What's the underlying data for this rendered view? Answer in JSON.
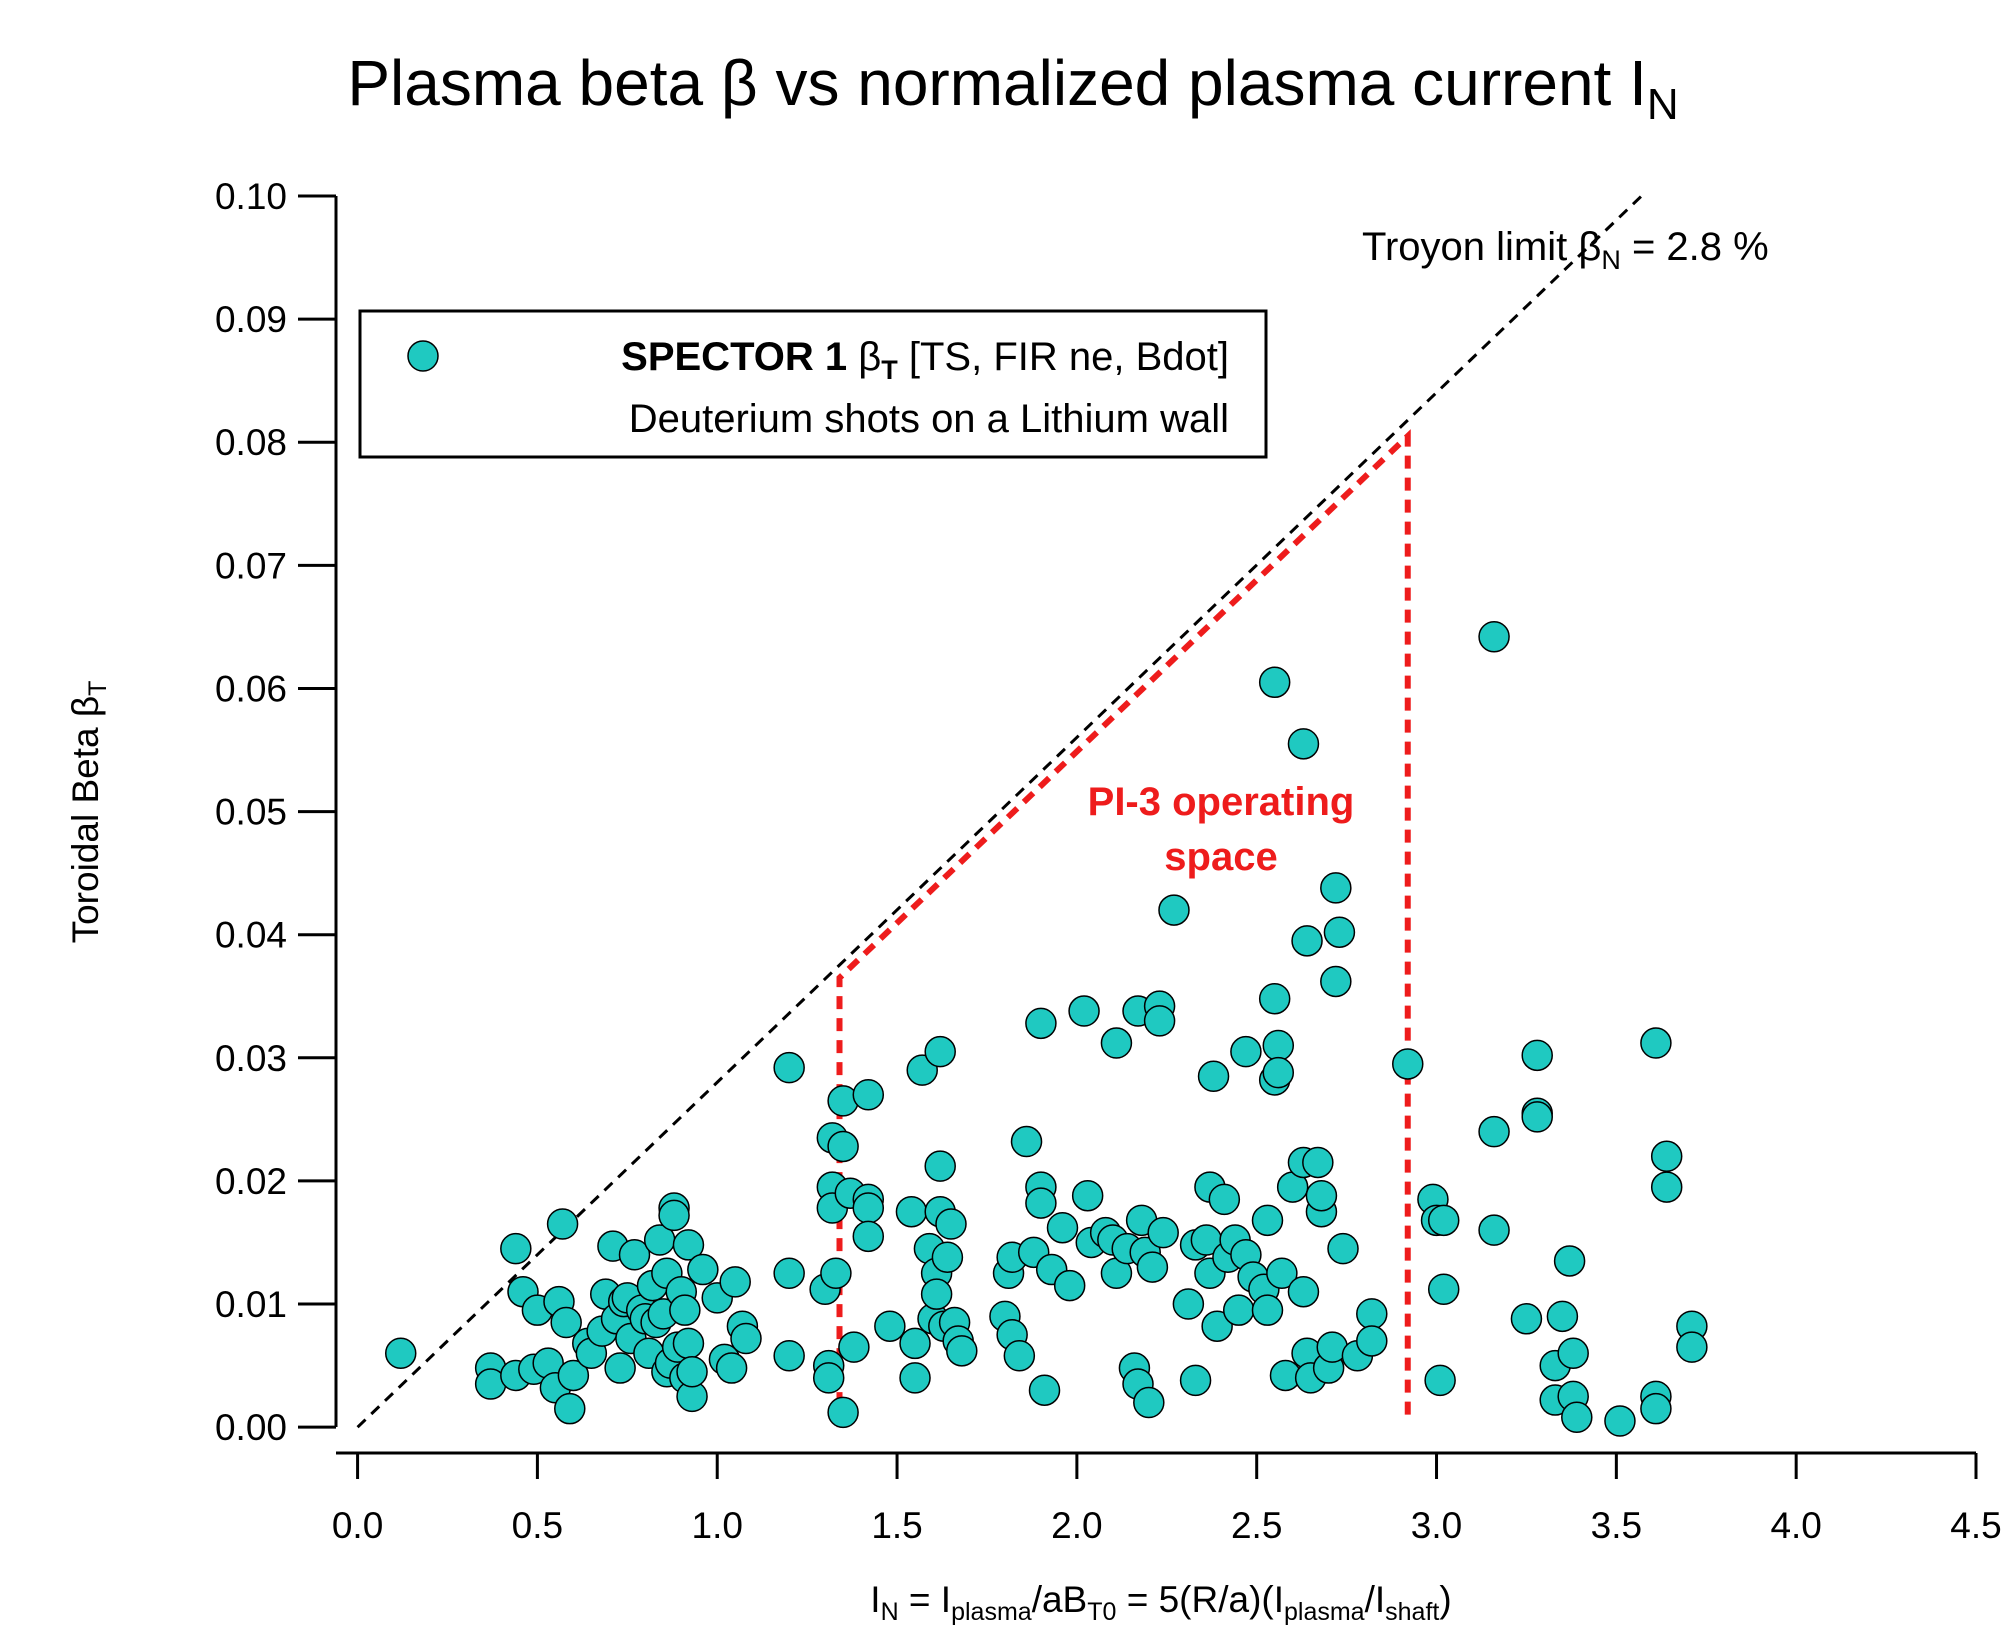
{
  "chart_data": {
    "type": "scatter",
    "title": [
      {
        "text": "Plasma beta β vs normalized plasma current  I"
      },
      {
        "text": "N",
        "sub": true
      }
    ],
    "x_label": [
      {
        "text": "I"
      },
      {
        "text": "N",
        "sub": true
      },
      {
        "text": "  = I"
      },
      {
        "text": "plasma",
        "sub": true
      },
      {
        "text": "/aB"
      },
      {
        "text": "T0",
        "sub": true
      },
      {
        "text": " = 5(R/a)(I"
      },
      {
        "text": "plasma",
        "sub": true
      },
      {
        "text": "/I"
      },
      {
        "text": "shaft",
        "sub": true
      },
      {
        "text": ")"
      }
    ],
    "y_label": [
      {
        "text": "Toroidal Beta  β"
      },
      {
        "text": "T",
        "sub": true
      }
    ],
    "legend": [
      [
        {
          "text": "SPECTOR 1 ",
          "bold": true
        },
        {
          "text": "β"
        },
        {
          "text": "T",
          "sub": true,
          "bold": true
        },
        {
          "text": " [TS, FIR ne, Bdot]"
        }
      ],
      [
        {
          "text": "Deuterium shots on a Lithium wall"
        }
      ]
    ],
    "annotations": {
      "troyon": [
        {
          "text": "Troyon limit β"
        },
        {
          "text": "N",
          "sub": true
        },
        {
          "text": " = 2.8 %"
        }
      ],
      "operating_space": [
        "PI-3 operating",
        "space"
      ]
    },
    "xlim": [
      -0.06,
      4.5
    ],
    "ylim": [
      -0.0021,
      0.1
    ],
    "xticks": [
      {
        "value": 0,
        "label": "0.0"
      },
      0.5,
      {
        "value": 1,
        "label": "1.0"
      },
      1.5,
      {
        "value": 2,
        "label": "2.0"
      },
      2.5,
      {
        "value": 3,
        "label": "3.0"
      },
      3.5,
      {
        "value": 4,
        "label": "4.0"
      },
      4.5
    ],
    "yticks": [
      {
        "value": 0,
        "label": "0.00"
      },
      0.01,
      0.02,
      0.03,
      0.04,
      0.05,
      0.06,
      0.07,
      0.08,
      0.09,
      {
        "value": 0.1,
        "label": "0.10"
      }
    ],
    "reference_lines": [
      {
        "x": [
          0,
          3.57
        ],
        "values": [
          0,
          0.1
        ],
        "color": "#000000"
      },
      {
        "x": [
          1.34,
          1.34,
          2.92,
          2.92
        ],
        "values": [
          0,
          0.0365,
          0.0805,
          0.0005
        ],
        "color": "#ee1c1c"
      }
    ],
    "series": [
      {
        "color": "#1fc9c1",
        "x": [
          0.12,
          0.37,
          0.37,
          0.44,
          0.44,
          0.46,
          0.49,
          0.5,
          0.53,
          0.55,
          0.56,
          0.57,
          0.58,
          0.59,
          0.6,
          0.64,
          0.65,
          0.68,
          0.69,
          0.71,
          0.72,
          0.73,
          0.74,
          0.75,
          0.76,
          0.77,
          0.79,
          0.8,
          0.81,
          0.82,
          0.83,
          0.84,
          0.85,
          0.86,
          0.86,
          0.87,
          0.88,
          0.88,
          0.89,
          0.9,
          0.91,
          0.91,
          0.92,
          0.92,
          0.93,
          0.93,
          0.96,
          1.0,
          1.02,
          1.04,
          1.05,
          1.07,
          1.08,
          1.2,
          1.2,
          1.2,
          1.3,
          1.31,
          1.31,
          1.32,
          1.32,
          1.32,
          1.33,
          1.35,
          1.35,
          1.35,
          1.37,
          1.38,
          1.42,
          1.42,
          1.42,
          1.42,
          1.48,
          1.54,
          1.55,
          1.55,
          1.57,
          1.59,
          1.6,
          1.61,
          1.61,
          1.62,
          1.62,
          1.62,
          1.63,
          1.64,
          1.65,
          1.66,
          1.67,
          1.68,
          1.8,
          1.81,
          1.82,
          1.82,
          1.84,
          1.86,
          1.88,
          1.9,
          1.9,
          1.9,
          1.91,
          1.93,
          1.96,
          1.98,
          2.02,
          2.03,
          2.04,
          2.08,
          2.1,
          2.11,
          2.11,
          2.14,
          2.16,
          2.17,
          2.17,
          2.18,
          2.19,
          2.2,
          2.21,
          2.23,
          2.23,
          2.24,
          2.27,
          2.31,
          2.33,
          2.33,
          2.36,
          2.37,
          2.37,
          2.38,
          2.39,
          2.41,
          2.42,
          2.44,
          2.45,
          2.47,
          2.47,
          2.49,
          2.52,
          2.53,
          2.53,
          2.55,
          2.55,
          2.55,
          2.56,
          2.56,
          2.57,
          2.58,
          2.6,
          2.63,
          2.63,
          2.63,
          2.64,
          2.64,
          2.65,
          2.67,
          2.68,
          2.68,
          2.7,
          2.71,
          2.72,
          2.72,
          2.73,
          2.74,
          2.78,
          2.82,
          2.82,
          2.92,
          2.99,
          3.0,
          3.01,
          3.02,
          3.02,
          3.16,
          3.16,
          3.16,
          3.25,
          3.28,
          3.28,
          3.28,
          3.33,
          3.33,
          3.35,
          3.37,
          3.38,
          3.38,
          3.39,
          3.51,
          3.61,
          3.61,
          3.61,
          3.64,
          3.64,
          3.71,
          3.71
        ],
        "values": [
          0.006,
          0.0048,
          0.0035,
          0.0145,
          0.0042,
          0.011,
          0.0047,
          0.0095,
          0.0052,
          0.0032,
          0.0102,
          0.0165,
          0.0085,
          0.0015,
          0.0042,
          0.0068,
          0.006,
          0.0078,
          0.0108,
          0.0147,
          0.0088,
          0.0048,
          0.0102,
          0.0105,
          0.0072,
          0.014,
          0.0095,
          0.0088,
          0.006,
          0.0115,
          0.0085,
          0.0152,
          0.0092,
          0.0125,
          0.0045,
          0.0052,
          0.0178,
          0.0172,
          0.0065,
          0.011,
          0.004,
          0.0095,
          0.0148,
          0.0068,
          0.0025,
          0.0045,
          0.0128,
          0.0105,
          0.0055,
          0.0048,
          0.0118,
          0.0082,
          0.0072,
          0.0292,
          0.0125,
          0.0058,
          0.0112,
          0.005,
          0.004,
          0.0235,
          0.0195,
          0.0178,
          0.0125,
          0.0265,
          0.0228,
          0.0012,
          0.019,
          0.0065,
          0.027,
          0.0185,
          0.0178,
          0.0155,
          0.0082,
          0.0175,
          0.0068,
          0.004,
          0.029,
          0.0145,
          0.0088,
          0.0125,
          0.0108,
          0.0305,
          0.0212,
          0.0175,
          0.0082,
          0.0138,
          0.0165,
          0.0085,
          0.007,
          0.0062,
          0.009,
          0.0125,
          0.0138,
          0.0075,
          0.0058,
          0.0232,
          0.0142,
          0.0328,
          0.0195,
          0.0182,
          0.003,
          0.0128,
          0.0162,
          0.0115,
          0.0338,
          0.0188,
          0.015,
          0.0158,
          0.0152,
          0.0125,
          0.0312,
          0.0145,
          0.0048,
          0.0338,
          0.0035,
          0.0168,
          0.0142,
          0.002,
          0.013,
          0.0342,
          0.033,
          0.0158,
          0.042,
          0.01,
          0.0038,
          0.0148,
          0.0152,
          0.0195,
          0.0125,
          0.0285,
          0.0082,
          0.0185,
          0.0138,
          0.0152,
          0.0095,
          0.0305,
          0.014,
          0.0122,
          0.0112,
          0.0168,
          0.0095,
          0.0282,
          0.0605,
          0.0348,
          0.031,
          0.0288,
          0.0125,
          0.0042,
          0.0195,
          0.0555,
          0.0215,
          0.011,
          0.0395,
          0.006,
          0.004,
          0.0215,
          0.0175,
          0.0188,
          0.0048,
          0.0065,
          0.0438,
          0.0362,
          0.0402,
          0.0145,
          0.0058,
          0.0092,
          0.007,
          0.0295,
          0.0185,
          0.0168,
          0.0038,
          0.0168,
          0.0112,
          0.0642,
          0.024,
          0.016,
          0.0088,
          0.0302,
          0.0255,
          0.0252,
          0.005,
          0.0022,
          0.009,
          0.0135,
          0.006,
          0.0025,
          0.0008,
          0.0005,
          0.0312,
          0.0025,
          0.0015,
          0.022,
          0.0195,
          0.0082,
          0.0065
        ]
      }
    ]
  }
}
